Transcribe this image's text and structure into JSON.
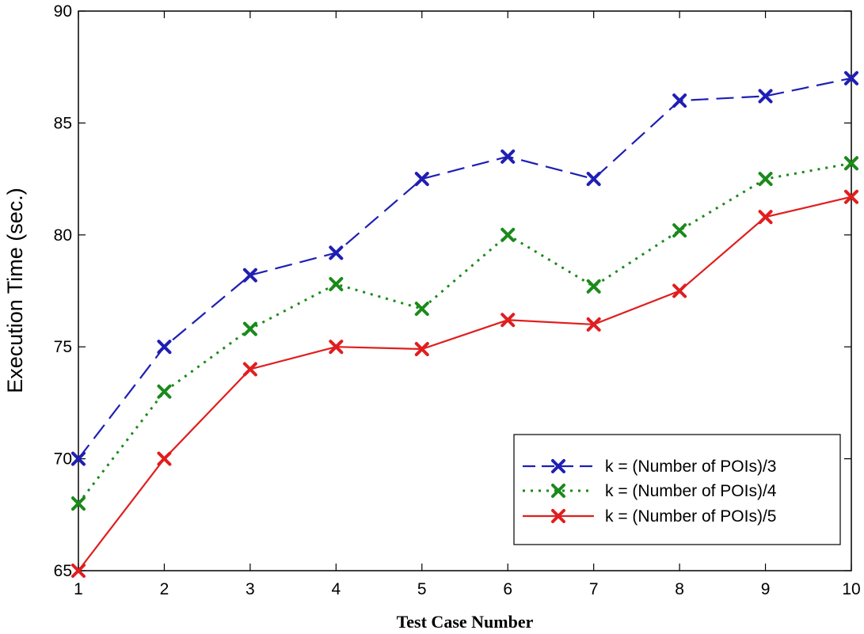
{
  "chart_data": {
    "type": "line",
    "title": "",
    "xlabel": "Test Case Number",
    "ylabel": "Execution Time (sec.)",
    "x": [
      1,
      2,
      3,
      4,
      5,
      6,
      7,
      8,
      9,
      10
    ],
    "xlim": [
      1,
      10
    ],
    "ylim": [
      65,
      90
    ],
    "yticks": [
      65,
      70,
      75,
      80,
      85,
      90
    ],
    "xticks": [
      1,
      2,
      3,
      4,
      5,
      6,
      7,
      8,
      9,
      10
    ],
    "grid": false,
    "legend_position": "bottom-right",
    "series": [
      {
        "name": "k = (Number of POIs)/3",
        "values": [
          70,
          75,
          78.2,
          79.2,
          82.5,
          83.5,
          82.5,
          86,
          86.2,
          87
        ],
        "color": "#1f1fb4",
        "line_style": "dashed",
        "marker": "x"
      },
      {
        "name": "k = (Number of POIs)/4",
        "values": [
          68,
          73,
          75.8,
          77.8,
          76.7,
          80,
          77.7,
          80.2,
          82.5,
          83.2
        ],
        "color": "#1a8a1a",
        "line_style": "dotted",
        "marker": "x"
      },
      {
        "name": "k = (Number of POIs)/5",
        "values": [
          65,
          70,
          74,
          75,
          74.9,
          76.2,
          76,
          77.5,
          80.8,
          81.7
        ],
        "color": "#e01e1e",
        "line_style": "solid",
        "marker": "x"
      }
    ]
  }
}
